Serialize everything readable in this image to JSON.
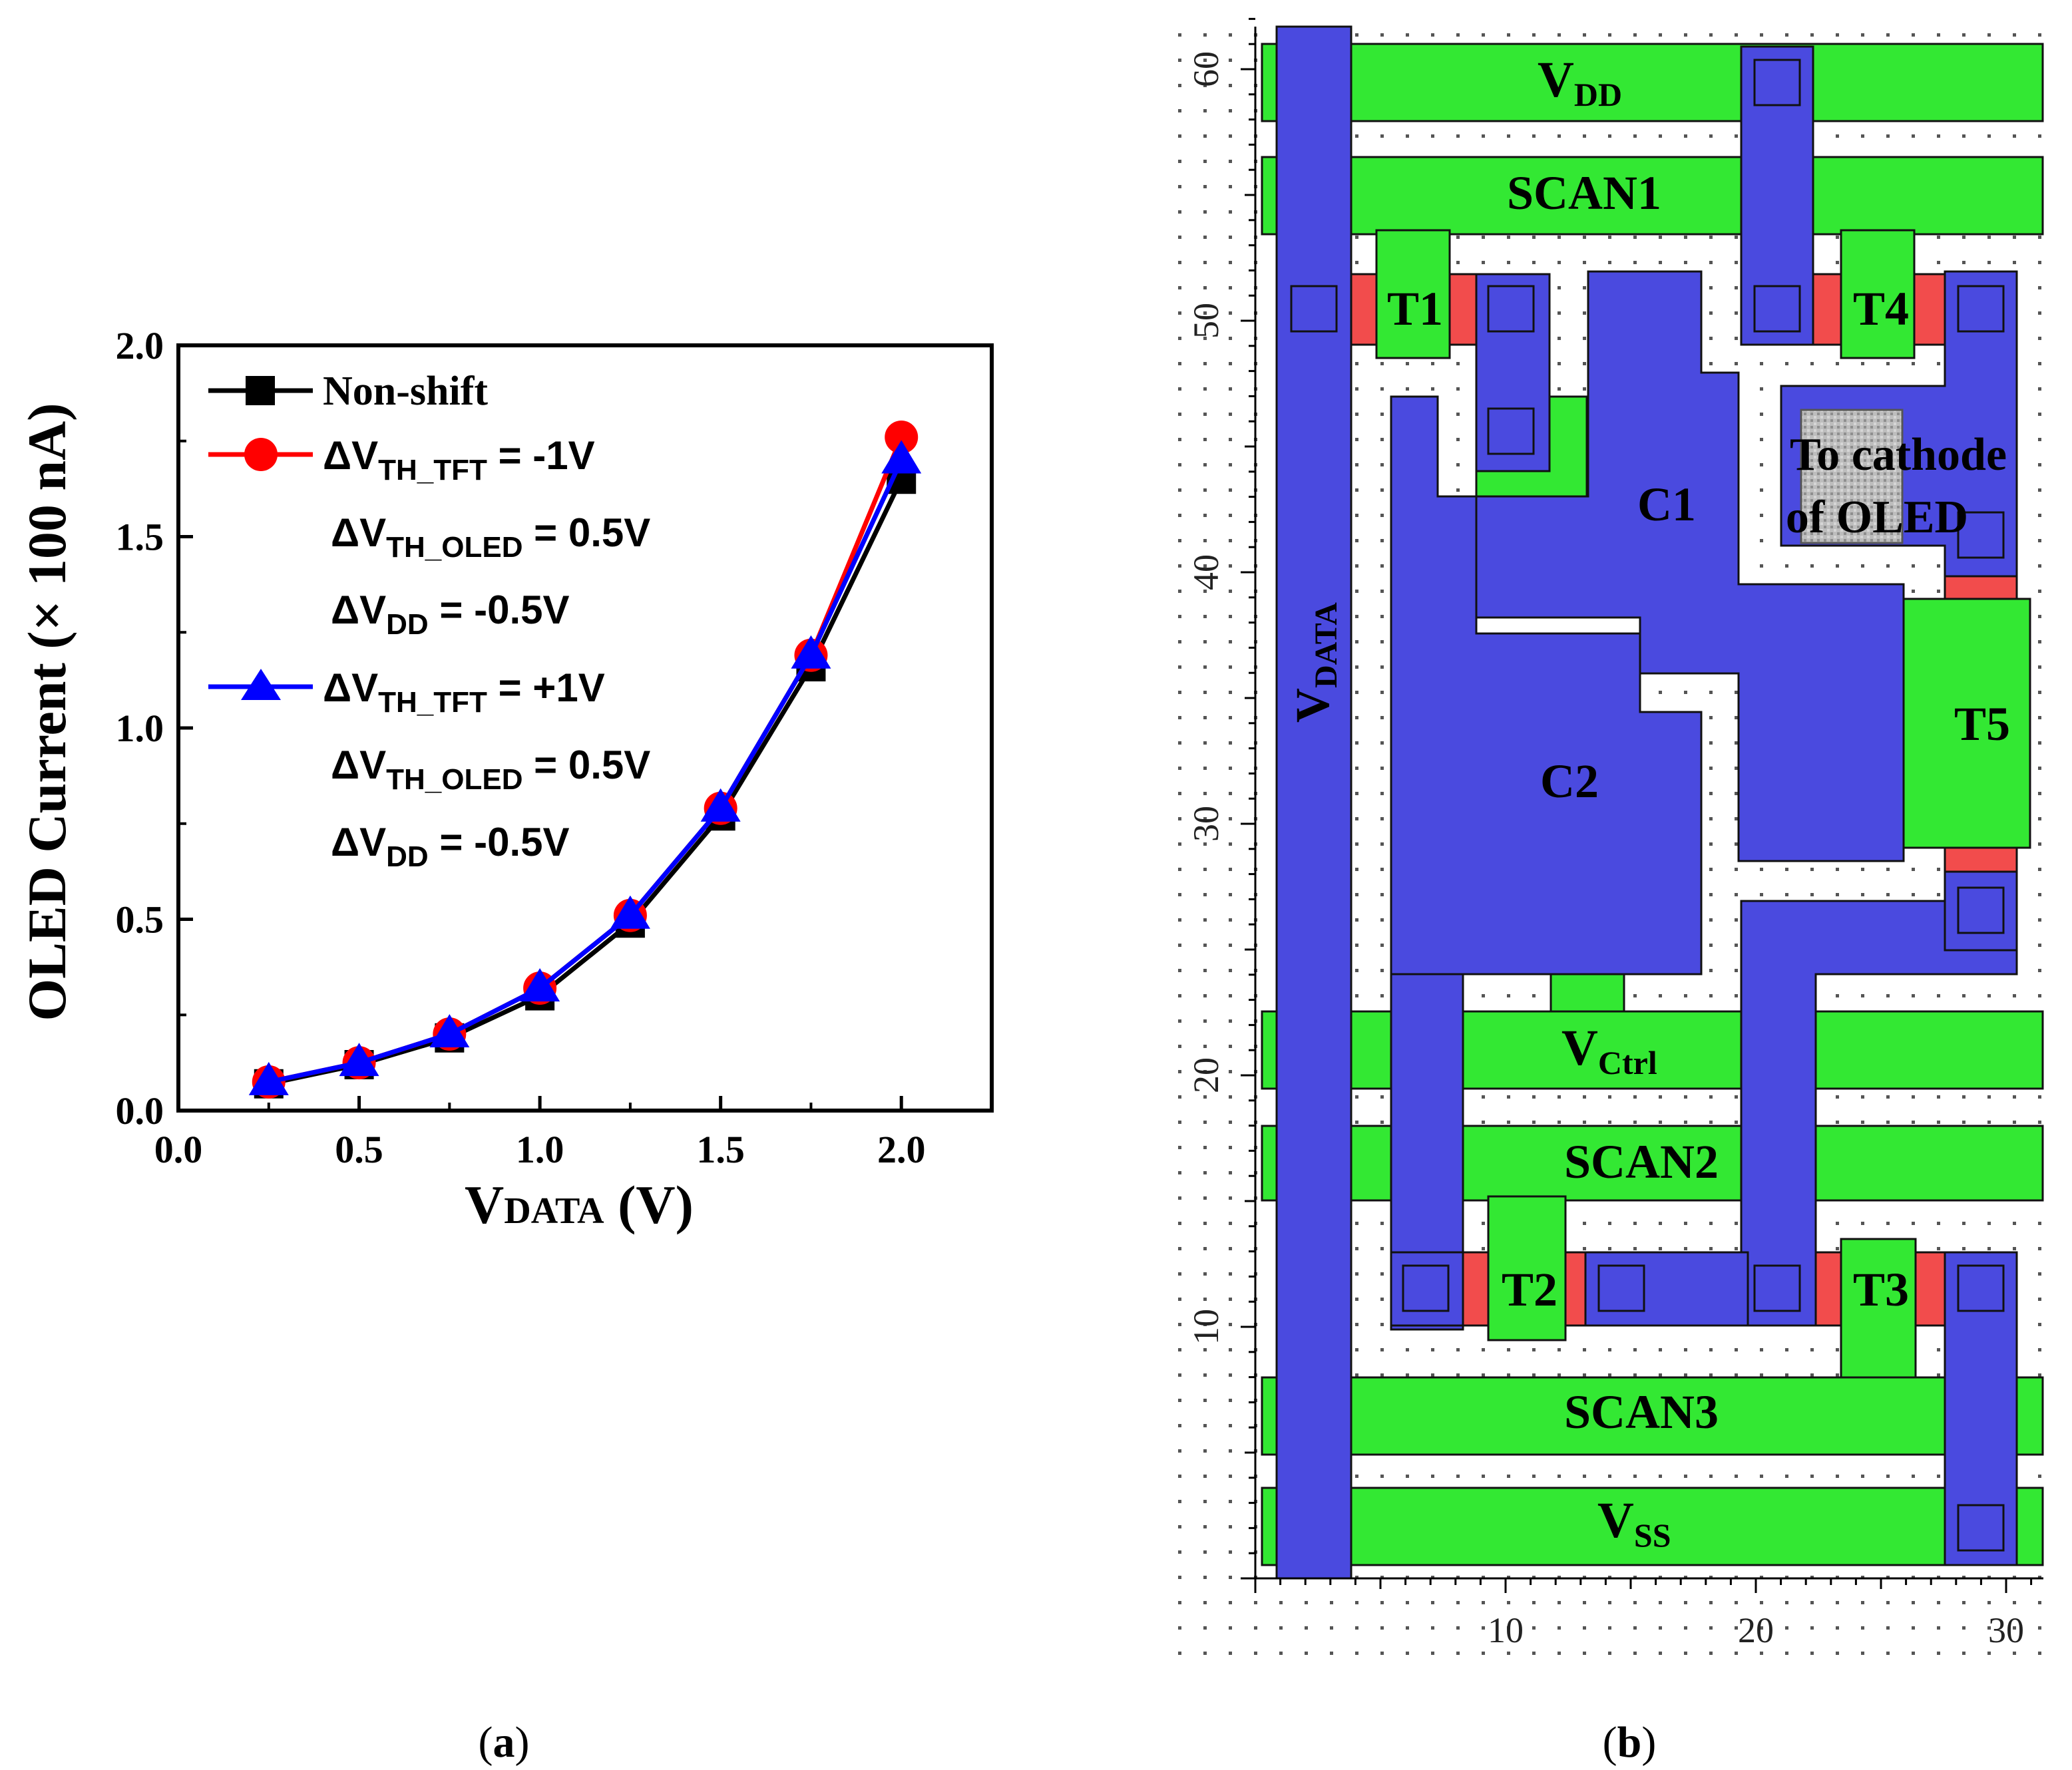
{
  "panels": {
    "a": {
      "caption_open": "(",
      "caption_letter": "a",
      "caption_close": ")"
    },
    "b": {
      "caption_open": "(",
      "caption_letter": "b",
      "caption_close": ")"
    }
  },
  "colors": {
    "series_black": "#000000",
    "series_red": "#ff0000",
    "series_blue": "#0000ff",
    "metal_blue": "#4a4adf",
    "poly_green": "#33e833",
    "channel_red": "#f24c4c",
    "via_gray": "#b5b5b5"
  },
  "chart_data": [
    {
      "type": "line",
      "x": [
        0.25,
        0.5,
        0.75,
        1.0,
        1.25,
        1.5,
        1.75,
        2.0
      ],
      "series": [
        {
          "name": "Non-shift",
          "marker": "square",
          "color": "#000000",
          "values": [
            0.07,
            0.12,
            0.19,
            0.3,
            0.49,
            0.77,
            1.16,
            1.65
          ]
        },
        {
          "name": "ΔVTH_TFT = -1V, ΔVTH_OLED = 0.5V, ΔVDD = -0.5V",
          "marker": "circle",
          "color": "#ff0000",
          "values": [
            0.075,
            0.125,
            0.2,
            0.32,
            0.51,
            0.79,
            1.19,
            1.76
          ]
        },
        {
          "name": "ΔVTH_TFT = +1V, ΔVTH_OLED = 0.5V, ΔVDD = -0.5V",
          "marker": "triangle",
          "color": "#0000ff",
          "values": [
            0.075,
            0.125,
            0.2,
            0.32,
            0.51,
            0.79,
            1.19,
            1.7
          ]
        }
      ],
      "xlabel_main": "V",
      "xlabel_sub": "DATA",
      "xlabel_unit": " (V)",
      "ylabel": "OLED Current (× 100 nA)",
      "xlim": [
        0.0,
        2.25
      ],
      "ylim": [
        0.0,
        2.0
      ],
      "xticks": [
        "0.0",
        "0.5",
        "1.0",
        "1.5",
        "2.0"
      ],
      "xtick_values": [
        0.0,
        0.5,
        1.0,
        1.5,
        2.0
      ],
      "yticks": [
        "0.0",
        "0.5",
        "1.0",
        "1.5",
        "2.0"
      ],
      "ytick_values": [
        0.0,
        0.5,
        1.0,
        1.5,
        2.0
      ],
      "legend_position": "top-left",
      "legend": {
        "entry1": "Non-shift",
        "tft_pre": "ΔV",
        "tft_sub": "TH_TFT",
        "tft_neg_val": " = -1V",
        "tft_pos_val": " = +1V",
        "oled_pre": "ΔV",
        "oled_sub": "TH_OLED",
        "oled_val": " = 0.5V",
        "vdd_pre": "ΔV",
        "vdd_sub": "DD",
        "vdd_val": " = -0.5V"
      }
    },
    {
      "type": "layout",
      "xticks": [
        "10",
        "20",
        "30"
      ],
      "xtick_values": [
        10,
        20,
        30
      ],
      "yticks": [
        "10",
        "20",
        "30",
        "40",
        "50",
        "60"
      ],
      "ytick_values": [
        10,
        20,
        30,
        40,
        50,
        60
      ],
      "labels": {
        "vdd_main": "V",
        "vdd_sub": "DD",
        "scan1": "SCAN1",
        "scan2": "SCAN2",
        "scan3": "SCAN3",
        "vctrl_main": "V",
        "vctrl_sub": "Ctrl",
        "vss_main": "V",
        "vss_sub": "SS",
        "vdata_main": "V",
        "vdata_sub": "DATA",
        "t1": "T1",
        "t2": "T2",
        "t3": "T3",
        "t4": "T4",
        "t5": "T5",
        "c1": "C1",
        "c2": "C2",
        "cathode_line1": "To cathode",
        "cathode_line2": "of OLED"
      }
    }
  ]
}
